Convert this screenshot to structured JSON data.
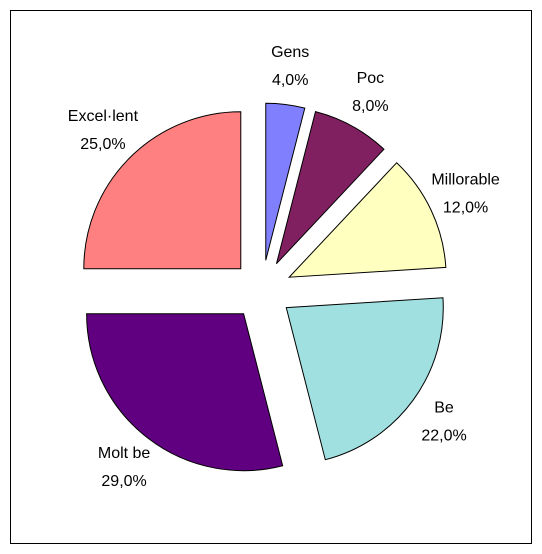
{
  "chart_data": {
    "type": "pie",
    "categories": [
      "Gens",
      "Poc",
      "Millorable",
      "Be",
      "Molt be",
      "Excel·lent"
    ],
    "values": [
      4,
      8,
      12,
      22,
      29,
      25
    ],
    "value_labels": [
      "4,0%",
      "8,0%",
      "12,0%",
      "22,0%",
      "29,0%",
      "25,0%"
    ],
    "colors": [
      "#8080ff",
      "#802060",
      "#ffffc0",
      "#a0e0e0",
      "#600080",
      "#ff8080"
    ]
  }
}
